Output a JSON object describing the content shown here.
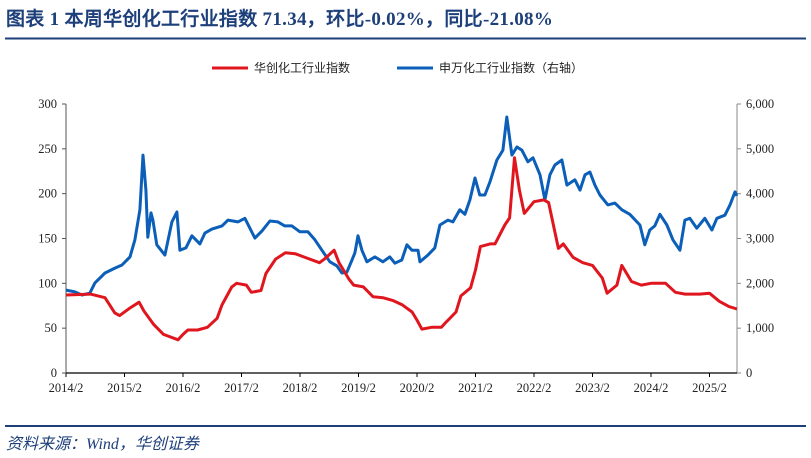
{
  "header": {
    "title": "图表 1   本周华创化工行业指数 71.34，环比-0.02%，同比-21.08%"
  },
  "footer": {
    "source": "资料来源：Wind，华创证券"
  },
  "colors": {
    "accent": "#1d3f7a",
    "red_series": "#e0161e",
    "blue_series": "#0b5fb8"
  },
  "chart_data": {
    "type": "line",
    "title": "",
    "legend_position": "top-center",
    "grid": false,
    "x_ticks": [
      "2014/2",
      "2015/2",
      "2016/2",
      "2017/2",
      "2018/2",
      "2019/2",
      "2020/2",
      "2021/2",
      "2022/2",
      "2023/2",
      "2024/2",
      "2025/2"
    ],
    "y_left": {
      "range": [
        0,
        300
      ],
      "ticks": [
        "0",
        "50",
        "100",
        "150",
        "200",
        "250",
        "300"
      ]
    },
    "y_right": {
      "range": [
        0,
        6000
      ],
      "ticks": [
        "0",
        "1,000",
        "2,000",
        "3,000",
        "4,000",
        "5,000",
        "6,000"
      ]
    },
    "series": [
      {
        "name": "华创化工行业指数",
        "axis": "left",
        "color": "#e0161e",
        "points": [
          [
            "2014-02-01",
            87
          ],
          [
            "2014-07-01",
            88
          ],
          [
            "2014-10-01",
            84
          ],
          [
            "2014-12-01",
            67
          ],
          [
            "2015-01-01",
            64
          ],
          [
            "2015-03-01",
            72
          ],
          [
            "2015-05-01",
            79
          ],
          [
            "2015-06-01",
            69
          ],
          [
            "2015-08-01",
            54
          ],
          [
            "2015-10-01",
            43
          ],
          [
            "2016-01-01",
            37
          ],
          [
            "2016-02-01",
            43
          ],
          [
            "2016-03-01",
            48
          ],
          [
            "2016-05-01",
            48
          ],
          [
            "2016-07-01",
            51
          ],
          [
            "2016-09-01",
            61
          ],
          [
            "2016-10-01",
            76
          ],
          [
            "2016-12-01",
            96
          ],
          [
            "2017-01-01",
            100
          ],
          [
            "2017-03-01",
            98
          ],
          [
            "2017-04-01",
            90
          ],
          [
            "2017-06-01",
            92
          ],
          [
            "2017-07-01",
            111
          ],
          [
            "2017-09-01",
            127
          ],
          [
            "2017-11-01",
            134
          ],
          [
            "2018-01-01",
            133
          ],
          [
            "2018-02-01",
            131
          ],
          [
            "2018-04-01",
            127
          ],
          [
            "2018-06-01",
            123
          ],
          [
            "2018-07-01",
            127
          ],
          [
            "2018-09-01",
            137
          ],
          [
            "2018-10-01",
            123
          ],
          [
            "2018-12-01",
            105
          ],
          [
            "2019-01-01",
            98
          ],
          [
            "2019-03-01",
            96
          ],
          [
            "2019-05-01",
            85
          ],
          [
            "2019-07-01",
            84
          ],
          [
            "2019-09-01",
            81
          ],
          [
            "2019-11-01",
            76
          ],
          [
            "2020-01-01",
            68
          ],
          [
            "2020-02-01",
            59
          ],
          [
            "2020-03-01",
            49
          ],
          [
            "2020-05-01",
            51
          ],
          [
            "2020-07-01",
            51
          ],
          [
            "2020-08-01",
            57
          ],
          [
            "2020-10-01",
            68
          ],
          [
            "2020-11-01",
            86
          ],
          [
            "2021-01-01",
            95
          ],
          [
            "2021-02-01",
            115
          ],
          [
            "2021-03-01",
            141
          ],
          [
            "2021-05-01",
            144
          ],
          [
            "2021-06-01",
            144
          ],
          [
            "2021-08-01",
            165
          ],
          [
            "2021-09-01",
            173
          ],
          [
            "2021-10-01",
            240
          ],
          [
            "2021-11-01",
            204
          ],
          [
            "2021-12-01",
            178
          ],
          [
            "2022-02-01",
            191
          ],
          [
            "2022-04-01",
            193
          ],
          [
            "2022-05-01",
            190
          ],
          [
            "2022-07-01",
            139
          ],
          [
            "2022-08-01",
            144
          ],
          [
            "2022-10-01",
            129
          ],
          [
            "2022-12-01",
            123
          ],
          [
            "2023-02-01",
            120
          ],
          [
            "2023-04-01",
            106
          ],
          [
            "2023-05-01",
            89
          ],
          [
            "2023-07-01",
            98
          ],
          [
            "2023-08-01",
            120
          ],
          [
            "2023-10-01",
            102
          ],
          [
            "2023-12-01",
            98
          ],
          [
            "2024-02-01",
            100
          ],
          [
            "2024-05-01",
            100
          ],
          [
            "2024-07-01",
            90
          ],
          [
            "2024-09-01",
            88
          ],
          [
            "2024-12-01",
            88
          ],
          [
            "2025-02-01",
            89
          ],
          [
            "2025-04-01",
            80
          ],
          [
            "2025-06-01",
            74
          ],
          [
            "2025-07-20",
            71.34
          ]
        ]
      },
      {
        "name": "申万化工行业指数（右轴）",
        "axis": "right",
        "color": "#0b5fb8",
        "points": [
          [
            "2014-02-01",
            1850
          ],
          [
            "2014-03-26",
            1810
          ],
          [
            "2014-05-09",
            1740
          ],
          [
            "2014-06-28",
            1780
          ],
          [
            "2014-07-29",
            2010
          ],
          [
            "2014-10-01",
            2230
          ],
          [
            "2014-12-02",
            2340
          ],
          [
            "2015-01-16",
            2410
          ],
          [
            "2015-03-05",
            2590
          ],
          [
            "2015-04-05",
            2970
          ],
          [
            "2015-05-06",
            3640
          ],
          [
            "2015-05-25",
            4860
          ],
          [
            "2015-06-13",
            4080
          ],
          [
            "2015-06-25",
            3030
          ],
          [
            "2015-07-14",
            3570
          ],
          [
            "2015-07-26",
            3410
          ],
          [
            "2015-08-20",
            2860
          ],
          [
            "2015-10-10",
            2630
          ],
          [
            "2015-11-23",
            3370
          ],
          [
            "2015-12-24",
            3590
          ],
          [
            "2016-01-12",
            2740
          ],
          [
            "2016-02-19",
            2790
          ],
          [
            "2016-03-26",
            3060
          ],
          [
            "2016-05-15",
            2880
          ],
          [
            "2016-06-16",
            3120
          ],
          [
            "2016-07-29",
            3210
          ],
          [
            "2016-10-01",
            3280
          ],
          [
            "2016-11-08",
            3410
          ],
          [
            "2017-01-09",
            3370
          ],
          [
            "2017-02-22",
            3450
          ],
          [
            "2017-04-24",
            3010
          ],
          [
            "2017-06-07",
            3170
          ],
          [
            "2017-07-26",
            3390
          ],
          [
            "2017-09-15",
            3370
          ],
          [
            "2017-10-28",
            3280
          ],
          [
            "2017-12-11",
            3280
          ],
          [
            "2018-01-31",
            3150
          ],
          [
            "2018-03-20",
            3150
          ],
          [
            "2018-05-03",
            2970
          ],
          [
            "2018-06-16",
            2740
          ],
          [
            "2018-08-05",
            2480
          ],
          [
            "2018-09-18",
            2390
          ],
          [
            "2018-10-19",
            2230
          ],
          [
            "2018-11-20",
            2250
          ],
          [
            "2018-12-21",
            2520
          ],
          [
            "2019-01-09",
            2680
          ],
          [
            "2019-01-28",
            3060
          ],
          [
            "2019-02-22",
            2740
          ],
          [
            "2019-03-23",
            2480
          ],
          [
            "2019-05-12",
            2590
          ],
          [
            "2019-07-01",
            2480
          ],
          [
            "2019-08-14",
            2590
          ],
          [
            "2019-09-15",
            2450
          ],
          [
            "2019-10-28",
            2520
          ],
          [
            "2019-11-29",
            2860
          ],
          [
            "2019-12-30",
            2740
          ],
          [
            "2020-02-07",
            2740
          ],
          [
            "2020-02-19",
            2480
          ],
          [
            "2020-04-08",
            2630
          ],
          [
            "2020-05-21",
            2790
          ],
          [
            "2020-06-22",
            3300
          ],
          [
            "2020-08-11",
            3410
          ],
          [
            "2020-09-12",
            3370
          ],
          [
            "2020-10-25",
            3640
          ],
          [
            "2020-11-26",
            3540
          ],
          [
            "2020-12-27",
            3860
          ],
          [
            "2021-01-28",
            4350
          ],
          [
            "2021-02-28",
            3970
          ],
          [
            "2021-03-29",
            3970
          ],
          [
            "2021-04-30",
            4260
          ],
          [
            "2021-06-13",
            4750
          ],
          [
            "2021-07-20",
            4970
          ],
          [
            "2021-08-14",
            5710
          ],
          [
            "2021-09-15",
            4860
          ],
          [
            "2021-10-16",
            5040
          ],
          [
            "2021-11-17",
            4970
          ],
          [
            "2021-12-24",
            4710
          ],
          [
            "2022-01-25",
            4800
          ],
          [
            "2022-03-08",
            4420
          ],
          [
            "2022-04-08",
            3860
          ],
          [
            "2022-05-09",
            4420
          ],
          [
            "2022-06-10",
            4640
          ],
          [
            "2022-07-23",
            4750
          ],
          [
            "2022-08-24",
            4190
          ],
          [
            "2022-10-13",
            4310
          ],
          [
            "2022-11-14",
            4080
          ],
          [
            "2022-12-15",
            4420
          ],
          [
            "2023-01-15",
            4480
          ],
          [
            "2023-02-16",
            4190
          ],
          [
            "2023-03-17",
            3970
          ],
          [
            "2023-05-06",
            3750
          ],
          [
            "2023-06-19",
            3790
          ],
          [
            "2023-08-02",
            3640
          ],
          [
            "2023-09-21",
            3540
          ],
          [
            "2023-11-23",
            3300
          ],
          [
            "2023-12-23",
            2860
          ],
          [
            "2024-01-24",
            3190
          ],
          [
            "2024-02-25",
            3280
          ],
          [
            "2024-03-26",
            3540
          ],
          [
            "2024-05-09",
            3300
          ],
          [
            "2024-06-16",
            2970
          ],
          [
            "2024-07-29",
            2740
          ],
          [
            "2024-08-30",
            3410
          ],
          [
            "2024-09-30",
            3450
          ],
          [
            "2024-11-13",
            3230
          ],
          [
            "2025-01-02",
            3450
          ],
          [
            "2025-02-16",
            3190
          ],
          [
            "2025-03-17",
            3450
          ],
          [
            "2025-05-06",
            3520
          ],
          [
            "2025-06-07",
            3750
          ],
          [
            "2025-07-08",
            4040
          ],
          [
            "2025-07-20",
            3950
          ]
        ]
      }
    ]
  }
}
